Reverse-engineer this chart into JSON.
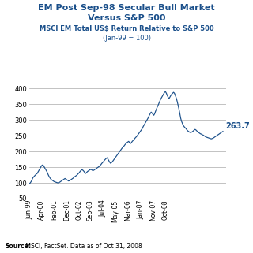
{
  "title_line1": "EM Post Sep-98 Secular Bull Market",
  "title_line2": "Versus S&P 500",
  "subtitle_line1": "MSCI EM Total US$ Return Relative to S&P 500",
  "subtitle_line2": "(Jan-99 = 100)",
  "source_text_bold": "Source:",
  "source_text_normal": " MSCI, FactSet. Data as of Oct 31, 2008",
  "end_label": "263.7",
  "line_color": "#1A4F8A",
  "title_color": "#1A4F8A",
  "subtitle_color": "#1A4F8A",
  "ylim": [
    50,
    420
  ],
  "yticks": [
    50,
    100,
    150,
    200,
    250,
    300,
    350,
    400
  ],
  "xtick_labels": [
    "Jun-99",
    "Apr-00",
    "Feb-01",
    "Dec-01",
    "Oct-02",
    "Sep-03",
    "Jul-04",
    "May-05",
    "Mar-06",
    "Jan-07",
    "Nov-07",
    "Oct-08"
  ],
  "xtick_positions": [
    0,
    14,
    28,
    42,
    56,
    68,
    82,
    96,
    110,
    124,
    138,
    152
  ],
  "xlim": [
    0,
    165
  ],
  "data": [
    [
      0,
      97
    ],
    [
      1,
      99
    ],
    [
      2,
      103
    ],
    [
      3,
      108
    ],
    [
      4,
      115
    ],
    [
      5,
      119
    ],
    [
      6,
      122
    ],
    [
      7,
      125
    ],
    [
      8,
      128
    ],
    [
      9,
      130
    ],
    [
      10,
      135
    ],
    [
      11,
      140
    ],
    [
      12,
      145
    ],
    [
      13,
      150
    ],
    [
      14,
      155
    ],
    [
      15,
      157
    ],
    [
      16,
      155
    ],
    [
      17,
      150
    ],
    [
      18,
      145
    ],
    [
      19,
      140
    ],
    [
      20,
      135
    ],
    [
      21,
      128
    ],
    [
      22,
      122
    ],
    [
      23,
      117
    ],
    [
      24,
      113
    ],
    [
      25,
      110
    ],
    [
      26,
      108
    ],
    [
      27,
      106
    ],
    [
      28,
      104
    ],
    [
      29,
      103
    ],
    [
      30,
      102
    ],
    [
      31,
      101
    ],
    [
      32,
      100
    ],
    [
      33,
      101
    ],
    [
      34,
      102
    ],
    [
      35,
      104
    ],
    [
      36,
      106
    ],
    [
      37,
      108
    ],
    [
      38,
      110
    ],
    [
      39,
      112
    ],
    [
      40,
      114
    ],
    [
      41,
      112
    ],
    [
      42,
      110
    ],
    [
      43,
      108
    ],
    [
      44,
      106
    ],
    [
      45,
      107
    ],
    [
      46,
      109
    ],
    [
      47,
      111
    ],
    [
      48,
      113
    ],
    [
      49,
      115
    ],
    [
      50,
      118
    ],
    [
      51,
      120
    ],
    [
      52,
      122
    ],
    [
      53,
      124
    ],
    [
      54,
      127
    ],
    [
      55,
      130
    ],
    [
      56,
      133
    ],
    [
      57,
      137
    ],
    [
      58,
      140
    ],
    [
      59,
      142
    ],
    [
      60,
      140
    ],
    [
      61,
      137
    ],
    [
      62,
      133
    ],
    [
      63,
      130
    ],
    [
      64,
      133
    ],
    [
      65,
      136
    ],
    [
      66,
      138
    ],
    [
      67,
      140
    ],
    [
      68,
      142
    ],
    [
      69,
      143
    ],
    [
      70,
      141
    ],
    [
      71,
      139
    ],
    [
      72,
      140
    ],
    [
      73,
      142
    ],
    [
      74,
      144
    ],
    [
      75,
      146
    ],
    [
      76,
      148
    ],
    [
      77,
      150
    ],
    [
      78,
      152
    ],
    [
      79,
      155
    ],
    [
      80,
      158
    ],
    [
      81,
      162
    ],
    [
      82,
      165
    ],
    [
      83,
      168
    ],
    [
      84,
      172
    ],
    [
      85,
      175
    ],
    [
      86,
      178
    ],
    [
      87,
      180
    ],
    [
      88,
      175
    ],
    [
      89,
      170
    ],
    [
      90,
      165
    ],
    [
      91,
      162
    ],
    [
      92,
      165
    ],
    [
      93,
      168
    ],
    [
      94,
      172
    ],
    [
      95,
      176
    ],
    [
      96,
      180
    ],
    [
      97,
      184
    ],
    [
      98,
      188
    ],
    [
      99,
      192
    ],
    [
      100,
      196
    ],
    [
      101,
      200
    ],
    [
      102,
      204
    ],
    [
      103,
      208
    ],
    [
      104,
      212
    ],
    [
      105,
      215
    ],
    [
      106,
      218
    ],
    [
      107,
      222
    ],
    [
      108,
      225
    ],
    [
      109,
      228
    ],
    [
      110,
      230
    ],
    [
      111,
      232
    ],
    [
      112,
      228
    ],
    [
      113,
      225
    ],
    [
      114,
      228
    ],
    [
      115,
      232
    ],
    [
      116,
      235
    ],
    [
      117,
      238
    ],
    [
      118,
      242
    ],
    [
      119,
      245
    ],
    [
      120,
      248
    ],
    [
      121,
      252
    ],
    [
      122,
      256
    ],
    [
      123,
      260
    ],
    [
      124,
      264
    ],
    [
      125,
      268
    ],
    [
      126,
      272
    ],
    [
      127,
      278
    ],
    [
      128,
      283
    ],
    [
      129,
      288
    ],
    [
      130,
      293
    ],
    [
      131,
      298
    ],
    [
      132,
      303
    ],
    [
      133,
      308
    ],
    [
      134,
      315
    ],
    [
      135,
      320
    ],
    [
      136,
      325
    ],
    [
      137,
      322
    ],
    [
      138,
      318
    ],
    [
      139,
      315
    ],
    [
      140,
      320
    ],
    [
      141,
      328
    ],
    [
      142,
      335
    ],
    [
      143,
      342
    ],
    [
      144,
      348
    ],
    [
      145,
      355
    ],
    [
      146,
      362
    ],
    [
      147,
      368
    ],
    [
      148,
      373
    ],
    [
      149,
      378
    ],
    [
      150,
      383
    ],
    [
      151,
      388
    ],
    [
      152,
      390
    ],
    [
      153,
      385
    ],
    [
      154,
      378
    ],
    [
      155,
      372
    ],
    [
      156,
      368
    ],
    [
      157,
      373
    ],
    [
      158,
      378
    ],
    [
      159,
      382
    ],
    [
      160,
      385
    ],
    [
      161,
      388
    ],
    [
      162,
      385
    ],
    [
      163,
      378
    ],
    [
      164,
      370
    ],
    [
      165,
      360
    ],
    [
      166,
      348
    ],
    [
      167,
      335
    ],
    [
      168,
      320
    ],
    [
      169,
      305
    ],
    [
      170,
      295
    ],
    [
      171,
      288
    ],
    [
      172,
      282
    ],
    [
      173,
      278
    ],
    [
      174,
      275
    ],
    [
      175,
      272
    ],
    [
      176,
      268
    ],
    [
      177,
      265
    ],
    [
      178,
      263
    ],
    [
      179,
      261
    ],
    [
      180,
      260
    ],
    [
      181,
      261
    ],
    [
      182,
      263
    ],
    [
      183,
      265
    ],
    [
      184,
      268
    ],
    [
      185,
      270
    ],
    [
      186,
      268
    ],
    [
      187,
      265
    ],
    [
      188,
      263
    ],
    [
      189,
      260
    ],
    [
      190,
      258
    ],
    [
      191,
      256
    ],
    [
      192,
      255
    ],
    [
      193,
      253
    ],
    [
      194,
      252
    ],
    [
      195,
      250
    ],
    [
      196,
      248
    ],
    [
      197,
      246
    ],
    [
      198,
      245
    ],
    [
      199,
      244
    ],
    [
      200,
      243
    ],
    [
      201,
      242
    ],
    [
      202,
      241
    ],
    [
      203,
      240
    ],
    [
      204,
      241
    ],
    [
      205,
      242
    ],
    [
      206,
      244
    ],
    [
      207,
      246
    ],
    [
      208,
      248
    ],
    [
      209,
      250
    ],
    [
      210,
      252
    ],
    [
      211,
      254
    ],
    [
      212,
      256
    ],
    [
      213,
      258
    ],
    [
      214,
      260
    ],
    [
      215,
      262
    ],
    [
      216,
      263.7
    ]
  ]
}
